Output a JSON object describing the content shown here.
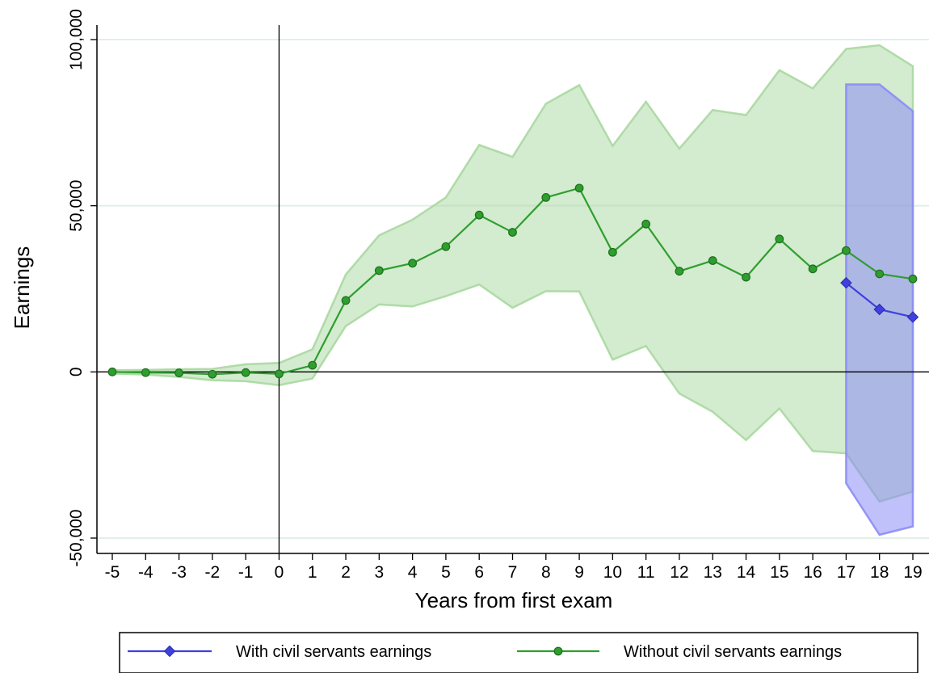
{
  "chart_data": {
    "type": "line",
    "xlabel": "Years from first exam",
    "ylabel": "Earnings",
    "xlim": [
      -5,
      19
    ],
    "ylim": [
      -50000,
      100000
    ],
    "x_ticks": [
      -5,
      -4,
      -3,
      -2,
      -1,
      0,
      1,
      2,
      3,
      4,
      5,
      6,
      7,
      8,
      9,
      10,
      11,
      12,
      13,
      14,
      15,
      16,
      17,
      18,
      19
    ],
    "y_ticks": [
      -50000,
      0,
      50000,
      100000
    ],
    "y_tick_labels": [
      "-50,000",
      "0",
      "50,000",
      "100,000"
    ],
    "reference_lines": {
      "x": 0,
      "y": 0
    },
    "grid": "horizontal",
    "legend_position": "bottom",
    "series": [
      {
        "name": "With civil servants earnings",
        "color": "#4040e0",
        "band_color": "#8c8cf5",
        "marker": "diamond",
        "x": [
          17,
          18,
          19
        ],
        "y": [
          26800,
          18800,
          16500
        ],
        "ci_low": [
          -33500,
          -49000,
          -46500
        ],
        "ci_high": [
          86500,
          86500,
          78500
        ]
      },
      {
        "name": "Without civil servants earnings",
        "color": "#2e9e2e",
        "band_color": "#a8d8a0",
        "marker": "circle",
        "x": [
          -5,
          -4,
          -3,
          -2,
          -1,
          0,
          1,
          2,
          3,
          4,
          5,
          6,
          7,
          8,
          9,
          10,
          11,
          12,
          13,
          14,
          15,
          16,
          17,
          18,
          19
        ],
        "y": [
          0,
          -200,
          -300,
          -700,
          -200,
          -600,
          2000,
          21500,
          30500,
          32700,
          37700,
          47200,
          42000,
          52500,
          55300,
          36000,
          44500,
          30300,
          33500,
          28500,
          40000,
          31000,
          36500,
          29500,
          28000
        ],
        "ci_low": [
          -500,
          -800,
          -1500,
          -2500,
          -2800,
          -4000,
          -2000,
          13800,
          20300,
          19700,
          22800,
          26300,
          19300,
          24300,
          24200,
          3700,
          7800,
          -6500,
          -12000,
          -20500,
          -11000,
          -23800,
          -24500,
          -39000,
          -36000
        ],
        "ci_high": [
          500,
          600,
          800,
          900,
          2300,
          2700,
          6800,
          29300,
          41100,
          45800,
          52500,
          68300,
          64700,
          80700,
          86300,
          68000,
          81300,
          67200,
          78800,
          77300,
          90800,
          85300,
          97200,
          98300,
          92000
        ]
      }
    ]
  }
}
